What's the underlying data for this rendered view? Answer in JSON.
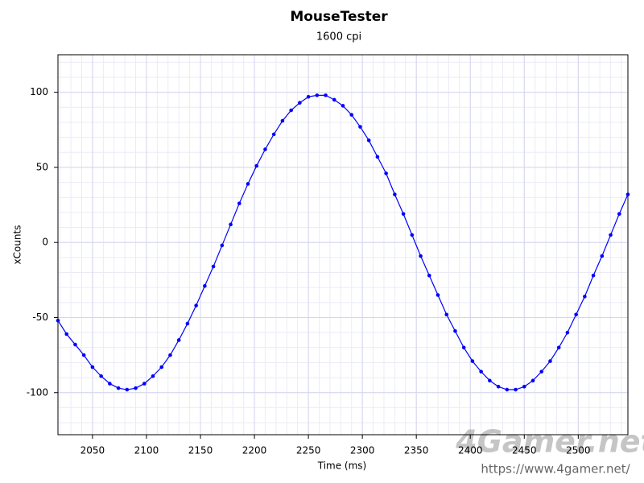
{
  "chart_data": {
    "type": "line",
    "title": "MouseTester",
    "subtitle": "1600 cpi",
    "x_label": "Time (ms)",
    "y_label": "xCounts",
    "x": [
      2018,
      2026,
      2034,
      2042,
      2050,
      2058,
      2066,
      2074,
      2082,
      2090,
      2098,
      2106,
      2114,
      2122,
      2130,
      2138,
      2146,
      2154,
      2162,
      2170,
      2178,
      2186,
      2194,
      2202,
      2210,
      2218,
      2226,
      2234,
      2242,
      2250,
      2258,
      2266,
      2274,
      2282,
      2290,
      2298,
      2306,
      2314,
      2322,
      2330,
      2338,
      2346,
      2354,
      2362,
      2370,
      2378,
      2386,
      2394,
      2402,
      2410,
      2418,
      2426,
      2434,
      2442,
      2450,
      2458,
      2466,
      2474,
      2482,
      2490,
      2498,
      2506,
      2514,
      2522,
      2530,
      2538,
      2546
    ],
    "series": [
      {
        "name": "xCounts",
        "color": "#0000ff",
        "values": [
          -52,
          -61,
          -68,
          -75,
          -83,
          -89,
          -94,
          -97,
          -98,
          -97,
          -94,
          -89,
          -83,
          -75,
          -65,
          -54,
          -42,
          -29,
          -16,
          -2,
          12,
          26,
          39,
          51,
          62,
          72,
          81,
          88,
          93,
          97,
          98,
          98,
          95,
          91,
          85,
          77,
          68,
          57,
          46,
          32,
          19,
          5,
          -9,
          -22,
          -35,
          -48,
          -59,
          -70,
          -79,
          -86,
          -92,
          -96,
          -98,
          -98,
          -96,
          -92,
          -86,
          -79,
          -70,
          -60,
          -48,
          -36,
          -22,
          -9,
          5,
          19,
          32
        ]
      }
    ],
    "xlim": [
      2018,
      2546
    ],
    "ylim": [
      -128,
      125
    ],
    "xticks": [
      2050,
      2100,
      2150,
      2200,
      2250,
      2300,
      2350,
      2400,
      2450,
      2500
    ],
    "yticks": [
      -100,
      -50,
      0,
      50,
      100
    ],
    "grid": true,
    "minor_divisions": 5,
    "watermark": "4Gamer.net",
    "watermark_url": "https://www.4gamer.net/"
  }
}
